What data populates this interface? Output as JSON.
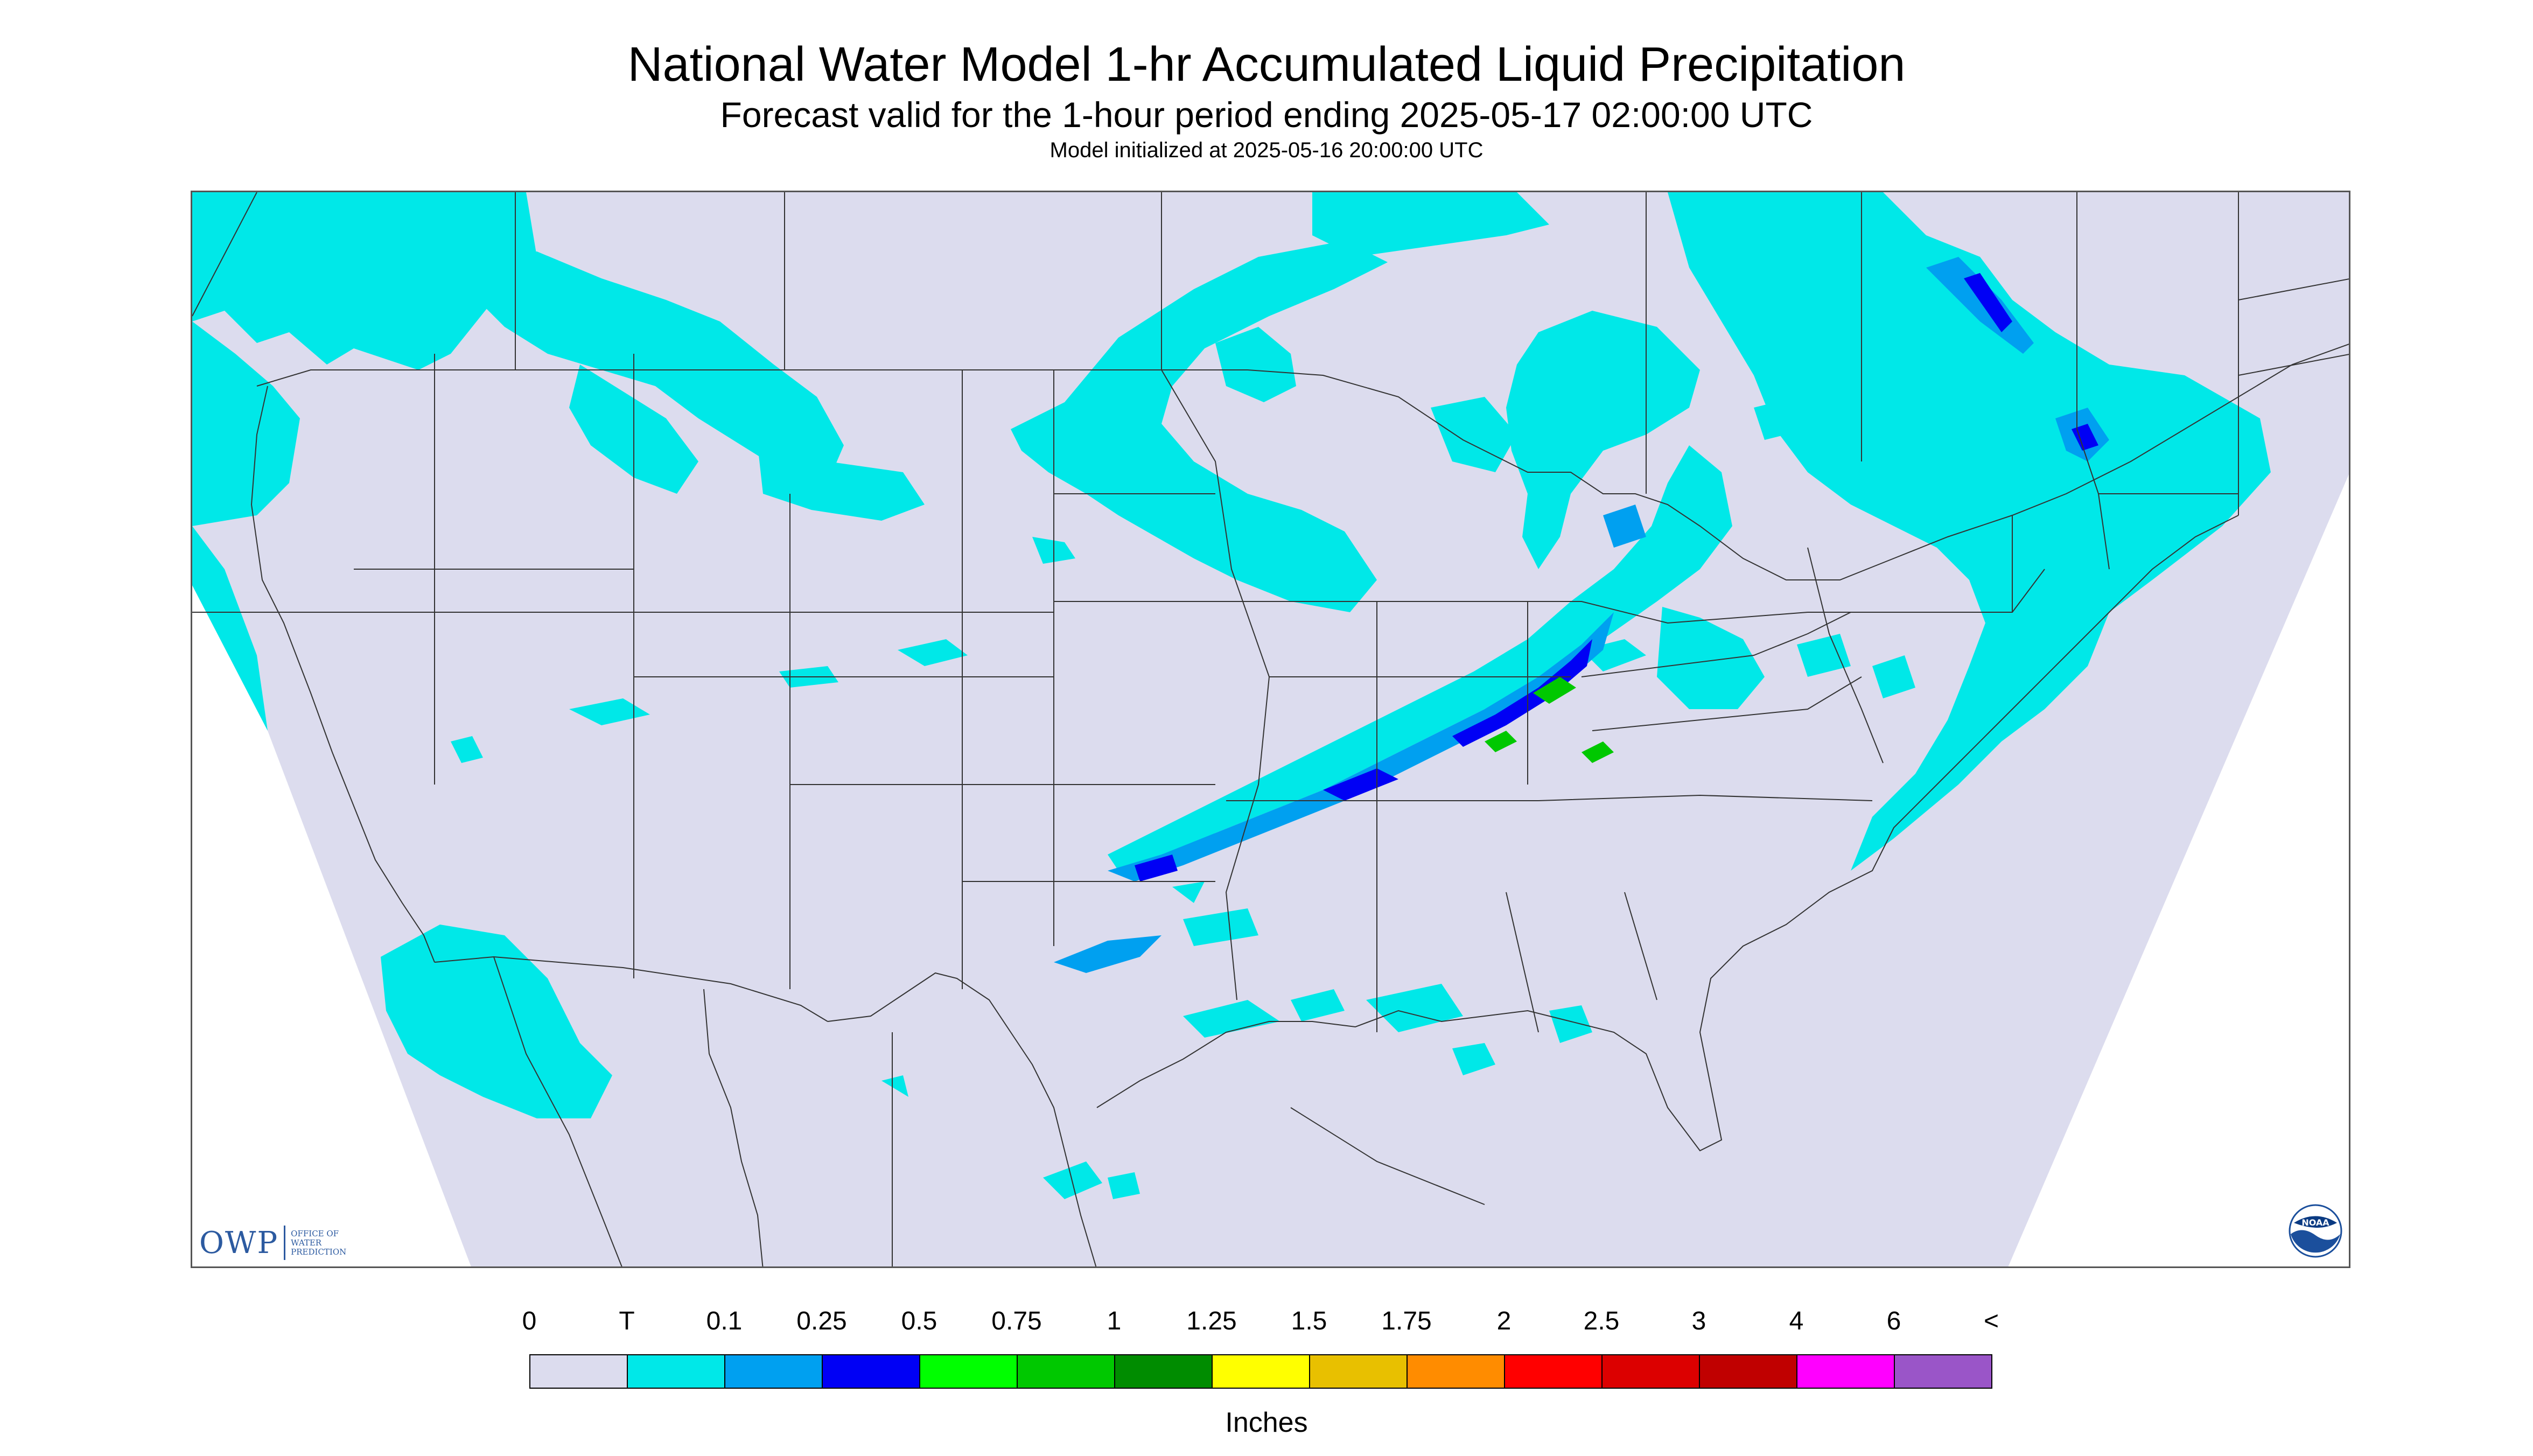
{
  "title": "National Water Model 1-hr Accumulated Liquid Precipitation",
  "subtitle": "Forecast valid for the 1-hour period ending 2025-05-17 02:00:00 UTC",
  "init_line": "Model initialized at 2025-05-16 20:00:00 UTC",
  "logos": {
    "owp_text": "OWP",
    "owp_small_1": "OFFICE OF",
    "owp_small_2": "WATER",
    "owp_small_3": "PREDICTION",
    "noaa_text": "NOAA"
  },
  "legend": {
    "units": "Inches",
    "labels": [
      "0",
      "T",
      "0.1",
      "0.25",
      "0.5",
      "0.75",
      "1",
      "1.25",
      "1.5",
      "1.75",
      "2",
      "2.5",
      "3",
      "4",
      "6",
      "<"
    ],
    "colors": [
      "#dcdcee",
      "#00e8e8",
      "#00a0f0",
      "#0000f5",
      "#00ff00",
      "#00c800",
      "#008c00",
      "#ffff00",
      "#e8c000",
      "#ff8c00",
      "#ff0000",
      "#dc0000",
      "#c00000",
      "#ff00ff",
      "#9a55c8"
    ]
  },
  "map_colors": {
    "domain_fill": "#dcdcee",
    "outside_fill": "#ffffff",
    "boundary": "#333333",
    "trace": "#00e8e8",
    "light": "#00a0f0",
    "moderate": "#0000f5",
    "heavy": "#00c800",
    "heavier": "#008c00"
  }
}
